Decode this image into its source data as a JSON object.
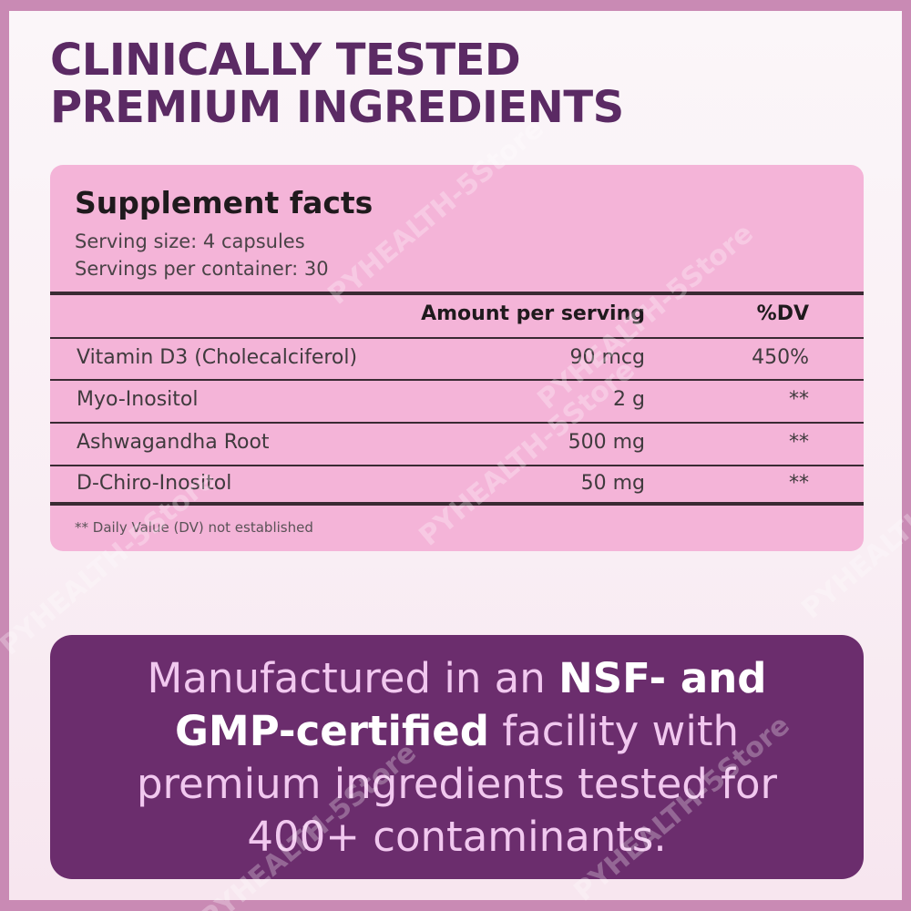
{
  "heading": {
    "lines": [
      "CLINICALLY TESTED",
      "PREMIUM INGREDIENTS"
    ]
  },
  "facts": {
    "title": "Supplement facts",
    "serving_size": "Serving size: 4 capsules",
    "servings_per_container": "Servings per container: 30",
    "columns": [
      "Amount per serving",
      "%DV"
    ],
    "rows": [
      [
        "Vitamin D3 (Cholecalciferol)",
        "90 mcg",
        "450%"
      ],
      [
        "Myo-Inositol",
        "2 g",
        "**"
      ],
      [
        "Ashwagandha Root",
        "500 mg",
        "**"
      ],
      [
        "D-Chiro-Inositol",
        "50 mg",
        "**"
      ]
    ],
    "footnote": "** Daily Value (DV) not established"
  },
  "banner": {
    "lines": [
      [
        {
          "text": "Manufactured in an "
        },
        {
          "text": "NSF- and",
          "bold": true
        }
      ],
      [
        {
          "text": "GMP-certified",
          "bold": true
        },
        {
          "text": " facility with"
        }
      ],
      [
        {
          "text": "premium ingredients tested for"
        }
      ],
      [
        {
          "text": "400+ contaminants."
        }
      ]
    ]
  },
  "watermark": "PYHEALTH-5Store"
}
